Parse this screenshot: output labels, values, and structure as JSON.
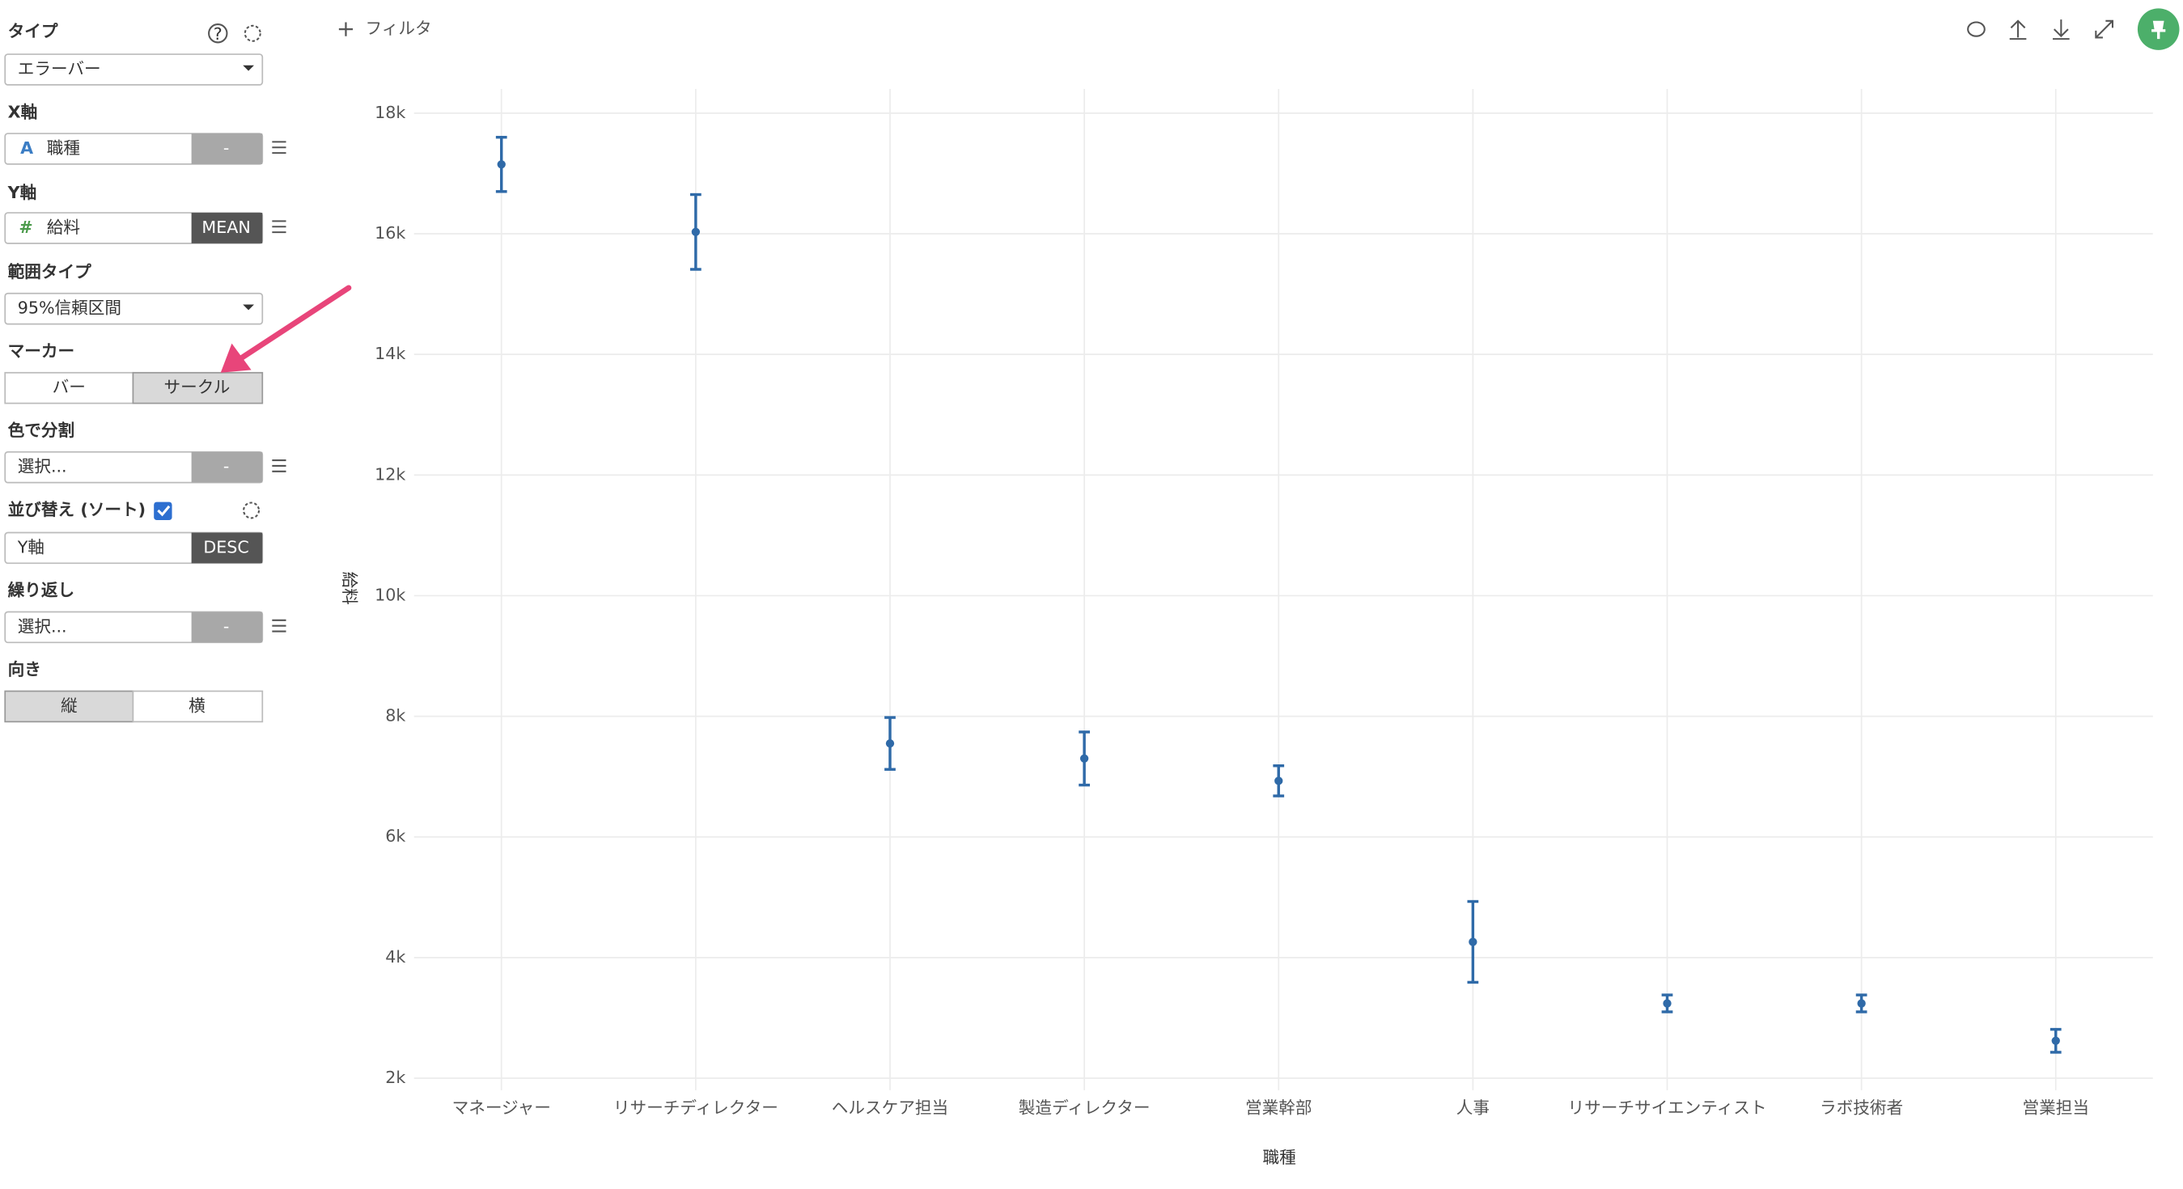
{
  "toolbar": {
    "filter": "フィルタ"
  },
  "sidebar": {
    "type_label": "タイプ",
    "type_value": "エラーバー",
    "x_label": "X軸",
    "x_icon": "A",
    "x_field": "職種",
    "x_agg": "-",
    "y_label": "Y軸",
    "y_icon": "#",
    "y_field": "給料",
    "y_agg": "MEAN",
    "range_label": "範囲タイプ",
    "range_value": "95%信頼区間",
    "marker_label": "マーカー",
    "marker_options": [
      "バー",
      "サークル"
    ],
    "color_label": "色で分割",
    "color_field": "選択...",
    "color_agg": "-",
    "sort_label": "並び替え (ソート)",
    "sort_field": "Y軸",
    "sort_order": "DESC",
    "repeat_label": "繰り返し",
    "repeat_field": "選択...",
    "repeat_agg": "-",
    "orient_label": "向き",
    "orient_options": [
      "縦",
      "横"
    ]
  },
  "chart_data": {
    "type": "errorbar",
    "x_label": "職種",
    "y_label": "給料",
    "color": "#2f6aa8",
    "categories": [
      "マネージャー",
      "リサーチディレクター",
      "ヘルスケア担当",
      "製造ディレクター",
      "営業幹部",
      "人事",
      "リサーチサイエンティスト",
      "ラボ技術者",
      "営業担当"
    ],
    "values": [
      17150,
      16030,
      7550,
      7300,
      6930,
      4260,
      3240,
      3240,
      2620
    ],
    "errors": [
      450,
      620,
      430,
      440,
      250,
      670,
      140,
      140,
      190
    ],
    "ylim": [
      1800,
      18400
    ],
    "yticks": [
      {
        "value": 2000,
        "label": "2k"
      },
      {
        "value": 4000,
        "label": "4k"
      },
      {
        "value": 6000,
        "label": "6k"
      },
      {
        "value": 8000,
        "label": "8k"
      },
      {
        "value": 10000,
        "label": "10k"
      },
      {
        "value": 12000,
        "label": "12k"
      },
      {
        "value": 14000,
        "label": "14k"
      },
      {
        "value": 16000,
        "label": "16k"
      },
      {
        "value": 18000,
        "label": "18k"
      }
    ],
    "grid": true
  }
}
